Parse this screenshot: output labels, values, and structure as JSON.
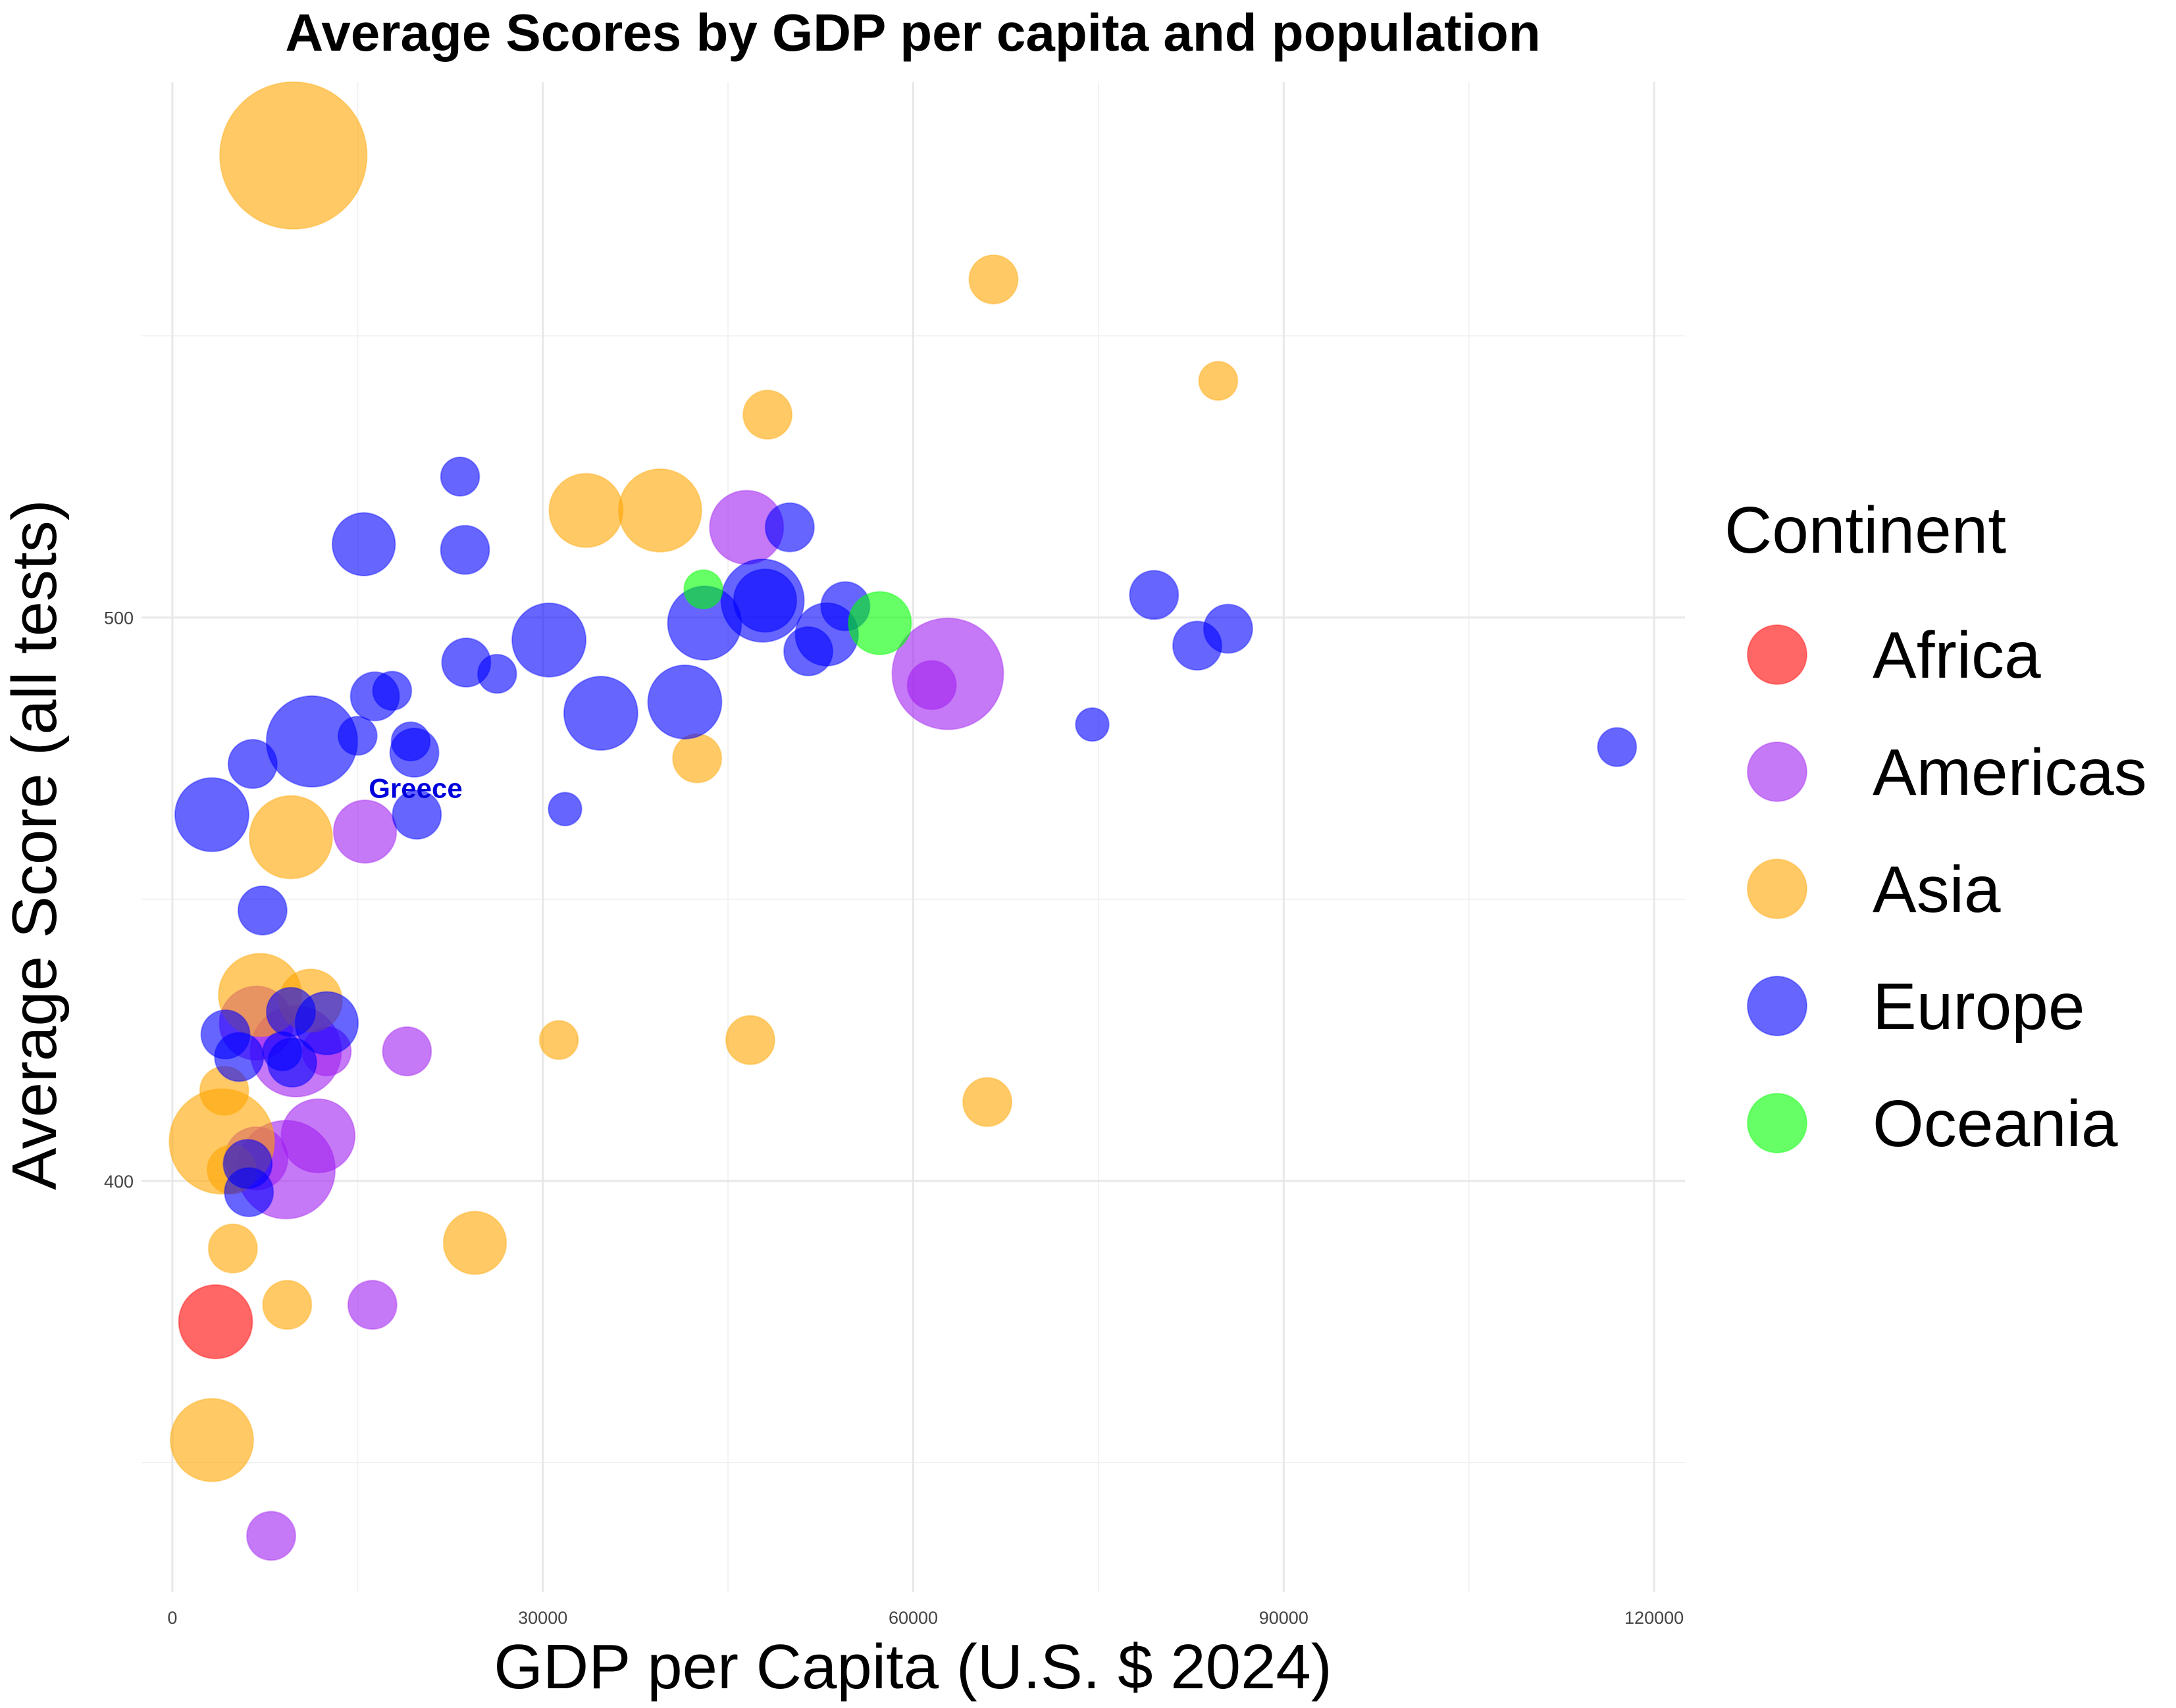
{
  "chart_data": {
    "type": "scatter",
    "title": "Average Scores by GDP per capita and population",
    "xlabel": "GDP per Capita (U.S. $ 2024)",
    "ylabel": "Average Score (all tests)",
    "xlim": [
      -2500,
      122500
    ],
    "ylim": [
      327,
      595
    ],
    "x_ticks": [
      0,
      30000,
      60000,
      90000,
      120000
    ],
    "x_tick_labels": [
      "0",
      "30000",
      "60000",
      "90000",
      "120000"
    ],
    "y_ticks": [
      400,
      500
    ],
    "y_tick_labels": [
      "400",
      "500"
    ],
    "grid": true,
    "legend": {
      "title": "Continent",
      "position": "right",
      "entries": [
        {
          "label": "Africa",
          "color": "#FF0000"
        },
        {
          "label": "Americas",
          "color": "#A020F0"
        },
        {
          "label": "Asia",
          "color": "#FFA500"
        },
        {
          "label": "Europe",
          "color": "#0000FF"
        },
        {
          "label": "Oceania",
          "color": "#00FF00"
        }
      ]
    },
    "annotations": [
      {
        "text": "Greece",
        "x": 19700,
        "y": 468,
        "color": "#0000DD"
      }
    ],
    "series": [
      {
        "name": "Africa",
        "color": "#FF0000",
        "points": [
          {
            "x": 3500,
            "y": 375,
            "size": 3
          }
        ]
      },
      {
        "name": "Americas",
        "color": "#A020F0",
        "points": [
          {
            "x": 46500,
            "y": 516,
            "size": 3
          },
          {
            "x": 62800,
            "y": 490,
            "size": 8
          },
          {
            "x": 61500,
            "y": 488,
            "size": 1
          },
          {
            "x": 15600,
            "y": 462,
            "size": 2
          },
          {
            "x": 6800,
            "y": 428,
            "size": 3
          },
          {
            "x": 10000,
            "y": 423,
            "size": 5
          },
          {
            "x": 12500,
            "y": 423,
            "size": 1
          },
          {
            "x": 19000,
            "y": 423,
            "size": 1
          },
          {
            "x": 11800,
            "y": 408,
            "size": 3
          },
          {
            "x": 6800,
            "y": 404,
            "size": 2
          },
          {
            "x": 9200,
            "y": 402,
            "size": 6
          },
          {
            "x": 16200,
            "y": 378,
            "size": 1
          },
          {
            "x": 8000,
            "y": 337,
            "size": 1
          }
        ]
      },
      {
        "name": "Asia",
        "color": "#FFA500",
        "points": [
          {
            "x": 9800,
            "y": 582,
            "size": 15
          },
          {
            "x": 66500,
            "y": 560,
            "size": 1
          },
          {
            "x": 84700,
            "y": 542,
            "size": 0.5
          },
          {
            "x": 48200,
            "y": 536,
            "size": 1
          },
          {
            "x": 33500,
            "y": 519,
            "size": 3
          },
          {
            "x": 39500,
            "y": 519,
            "size": 4
          },
          {
            "x": 42500,
            "y": 475,
            "size": 1
          },
          {
            "x": 9600,
            "y": 461,
            "size": 4
          },
          {
            "x": 7100,
            "y": 433,
            "size": 4
          },
          {
            "x": 11200,
            "y": 432,
            "size": 2
          },
          {
            "x": 31300,
            "y": 425,
            "size": 0.5
          },
          {
            "x": 46800,
            "y": 425,
            "size": 1
          },
          {
            "x": 4200,
            "y": 416,
            "size": 1
          },
          {
            "x": 66000,
            "y": 414,
            "size": 1
          },
          {
            "x": 4000,
            "y": 407,
            "size": 7
          },
          {
            "x": 4800,
            "y": 402,
            "size": 1
          },
          {
            "x": 4900,
            "y": 388,
            "size": 1
          },
          {
            "x": 24500,
            "y": 389,
            "size": 2
          },
          {
            "x": 9300,
            "y": 378,
            "size": 1
          },
          {
            "x": 3200,
            "y": 354,
            "size": 4
          }
        ]
      },
      {
        "name": "Europe",
        "color": "#0000FF",
        "points": [
          {
            "x": 23300,
            "y": 525,
            "size": 0.5
          },
          {
            "x": 15500,
            "y": 513,
            "size": 2
          },
          {
            "x": 23700,
            "y": 512,
            "size": 1
          },
          {
            "x": 50000,
            "y": 516,
            "size": 1
          },
          {
            "x": 79500,
            "y": 504,
            "size": 1
          },
          {
            "x": 48000,
            "y": 503,
            "size": 2
          },
          {
            "x": 47800,
            "y": 503,
            "size": 4
          },
          {
            "x": 54500,
            "y": 502,
            "size": 1
          },
          {
            "x": 43100,
            "y": 499,
            "size": 3
          },
          {
            "x": 30500,
            "y": 496,
            "size": 3
          },
          {
            "x": 53000,
            "y": 497,
            "size": 2
          },
          {
            "x": 51500,
            "y": 494,
            "size": 1
          },
          {
            "x": 83000,
            "y": 495,
            "size": 1
          },
          {
            "x": 85500,
            "y": 498,
            "size": 1
          },
          {
            "x": 23800,
            "y": 492,
            "size": 1
          },
          {
            "x": 26300,
            "y": 490,
            "size": 0.5
          },
          {
            "x": 16400,
            "y": 486,
            "size": 1
          },
          {
            "x": 17800,
            "y": 487,
            "size": 0.5
          },
          {
            "x": 41500,
            "y": 485,
            "size": 3
          },
          {
            "x": 34700,
            "y": 483,
            "size": 3
          },
          {
            "x": 74500,
            "y": 481,
            "size": 0.3
          },
          {
            "x": 11300,
            "y": 478,
            "size": 5
          },
          {
            "x": 15000,
            "y": 479,
            "size": 0.5
          },
          {
            "x": 19300,
            "y": 478,
            "size": 0.5
          },
          {
            "x": 19600,
            "y": 476,
            "size": 1
          },
          {
            "x": 117000,
            "y": 477,
            "size": 0.5
          },
          {
            "x": 6500,
            "y": 474,
            "size": 1
          },
          {
            "x": 31800,
            "y": 466,
            "size": 0.3
          },
          {
            "x": 3200,
            "y": 465,
            "size": 3
          },
          {
            "x": 19800,
            "y": 465,
            "size": 1
          },
          {
            "x": 7300,
            "y": 448,
            "size": 1
          },
          {
            "x": 9600,
            "y": 430,
            "size": 1
          },
          {
            "x": 12500,
            "y": 428,
            "size": 2
          },
          {
            "x": 4300,
            "y": 426,
            "size": 1
          },
          {
            "x": 5400,
            "y": 422,
            "size": 1
          },
          {
            "x": 8900,
            "y": 423,
            "size": 0.5
          },
          {
            "x": 9700,
            "y": 421,
            "size": 1
          },
          {
            "x": 6100,
            "y": 403,
            "size": 1
          },
          {
            "x": 6200,
            "y": 398,
            "size": 1
          }
        ]
      },
      {
        "name": "Oceania",
        "color": "#00FF00",
        "points": [
          {
            "x": 43000,
            "y": 505,
            "size": 0.5
          },
          {
            "x": 57300,
            "y": 499,
            "size": 2
          }
        ]
      }
    ]
  }
}
